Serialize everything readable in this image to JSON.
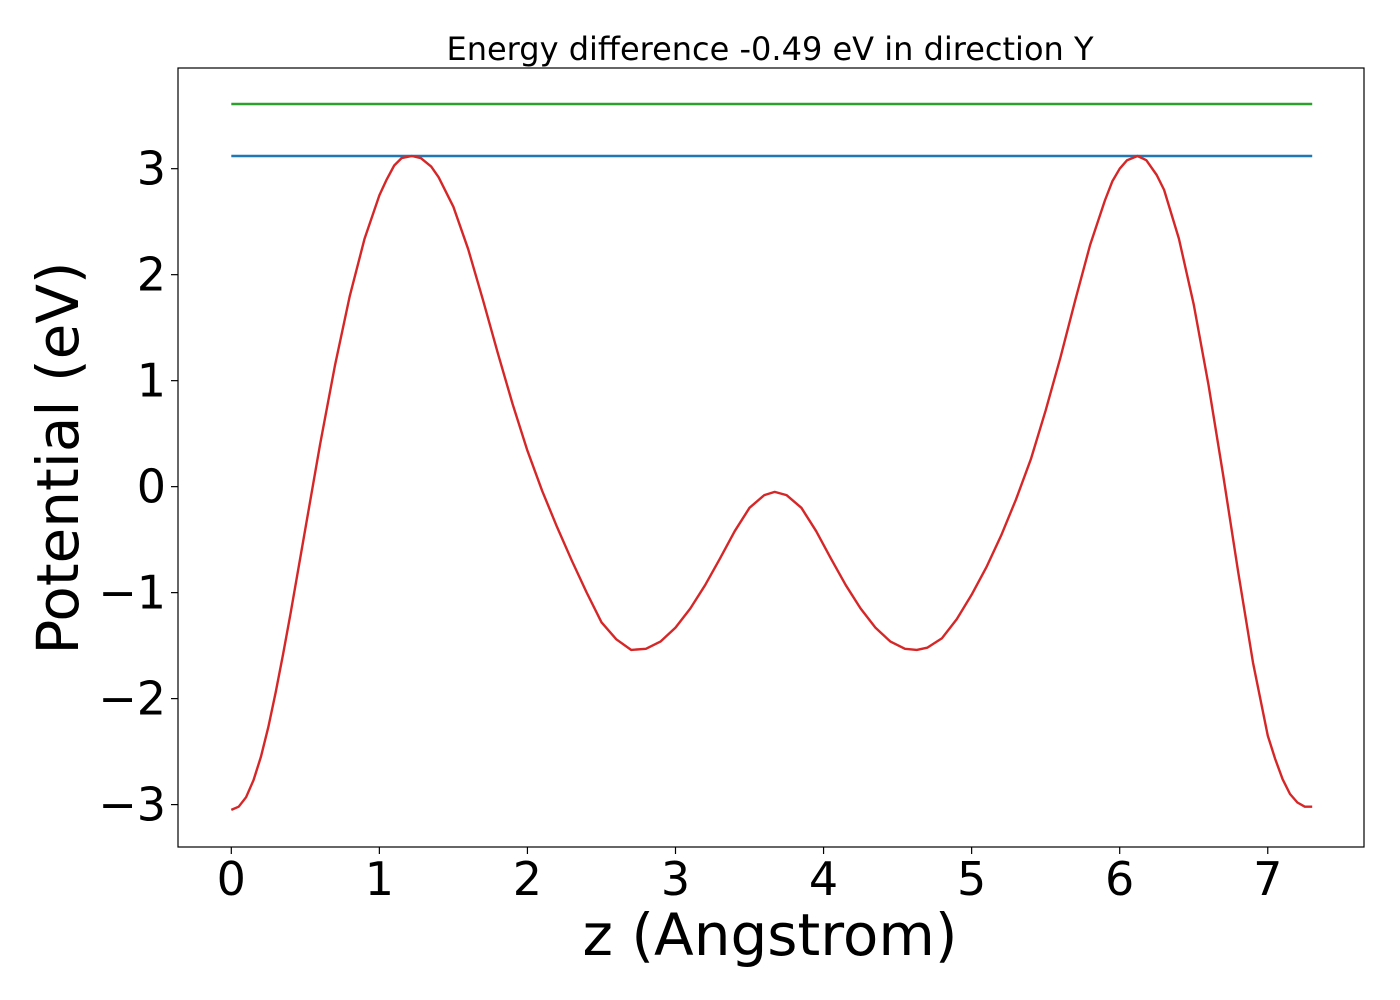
{
  "chart_data": {
    "type": "line",
    "title": "Energy difference -0.49 eV in direction Y",
    "xlabel": "z (Angstrom)",
    "ylabel": "Potential (eV)",
    "xlim": [
      -0.36,
      7.65
    ],
    "ylim": [
      -3.4,
      3.95
    ],
    "x_ticks": [
      0,
      1,
      2,
      3,
      4,
      5,
      6,
      7
    ],
    "x_tick_labels": [
      "0",
      "1",
      "2",
      "3",
      "4",
      "5",
      "6",
      "7"
    ],
    "y_ticks": [
      -3,
      -2,
      -1,
      0,
      1,
      2,
      3
    ],
    "y_tick_labels": [
      "−3",
      "−2",
      "−1",
      "0",
      "1",
      "2",
      "3"
    ],
    "grid": false,
    "series": [
      {
        "color": "#d62728",
        "x": [
          0.0,
          0.05,
          0.1,
          0.15,
          0.2,
          0.25,
          0.3,
          0.35,
          0.4,
          0.5,
          0.6,
          0.7,
          0.8,
          0.9,
          1.0,
          1.05,
          1.1,
          1.15,
          1.22,
          1.28,
          1.35,
          1.4,
          1.5,
          1.6,
          1.7,
          1.8,
          1.9,
          2.0,
          2.1,
          2.2,
          2.3,
          2.4,
          2.5,
          2.6,
          2.7,
          2.8,
          2.9,
          3.0,
          3.1,
          3.2,
          3.3,
          3.4,
          3.5,
          3.6,
          3.67,
          3.75,
          3.85,
          3.95,
          4.05,
          4.15,
          4.25,
          4.35,
          4.45,
          4.55,
          4.63,
          4.7,
          4.8,
          4.9,
          5.0,
          5.1,
          5.2,
          5.3,
          5.4,
          5.5,
          5.6,
          5.7,
          5.8,
          5.9,
          5.95,
          6.0,
          6.05,
          6.12,
          6.18,
          6.25,
          6.3,
          6.4,
          6.5,
          6.6,
          6.7,
          6.8,
          6.9,
          7.0,
          7.05,
          7.1,
          7.15,
          7.2,
          7.25,
          7.3
        ],
        "y": [
          -3.05,
          -3.02,
          -2.93,
          -2.77,
          -2.55,
          -2.27,
          -1.94,
          -1.58,
          -1.2,
          -0.4,
          0.4,
          1.14,
          1.8,
          2.34,
          2.75,
          2.9,
          3.03,
          3.1,
          3.12,
          3.1,
          3.02,
          2.92,
          2.64,
          2.24,
          1.76,
          1.26,
          0.78,
          0.34,
          -0.04,
          -0.38,
          -0.7,
          -1.0,
          -1.28,
          -1.44,
          -1.54,
          -1.53,
          -1.46,
          -1.33,
          -1.15,
          -0.93,
          -0.68,
          -0.42,
          -0.2,
          -0.08,
          -0.05,
          -0.08,
          -0.2,
          -0.42,
          -0.68,
          -0.93,
          -1.15,
          -1.33,
          -1.46,
          -1.53,
          -1.54,
          -1.52,
          -1.43,
          -1.25,
          -1.02,
          -0.76,
          -0.46,
          -0.12,
          0.26,
          0.72,
          1.22,
          1.76,
          2.28,
          2.7,
          2.88,
          3.0,
          3.08,
          3.12,
          3.08,
          2.94,
          2.8,
          2.34,
          1.72,
          0.96,
          0.1,
          -0.8,
          -1.66,
          -2.35,
          -2.57,
          -2.76,
          -2.9,
          -2.98,
          -3.02,
          -3.02
        ]
      },
      {
        "color": "#1f77b4",
        "x": [
          0.0,
          7.3
        ],
        "y": [
          3.12,
          3.12
        ]
      },
      {
        "color": "#2ca02c",
        "x": [
          0.0,
          7.3
        ],
        "y": [
          3.61,
          3.61
        ]
      }
    ]
  }
}
